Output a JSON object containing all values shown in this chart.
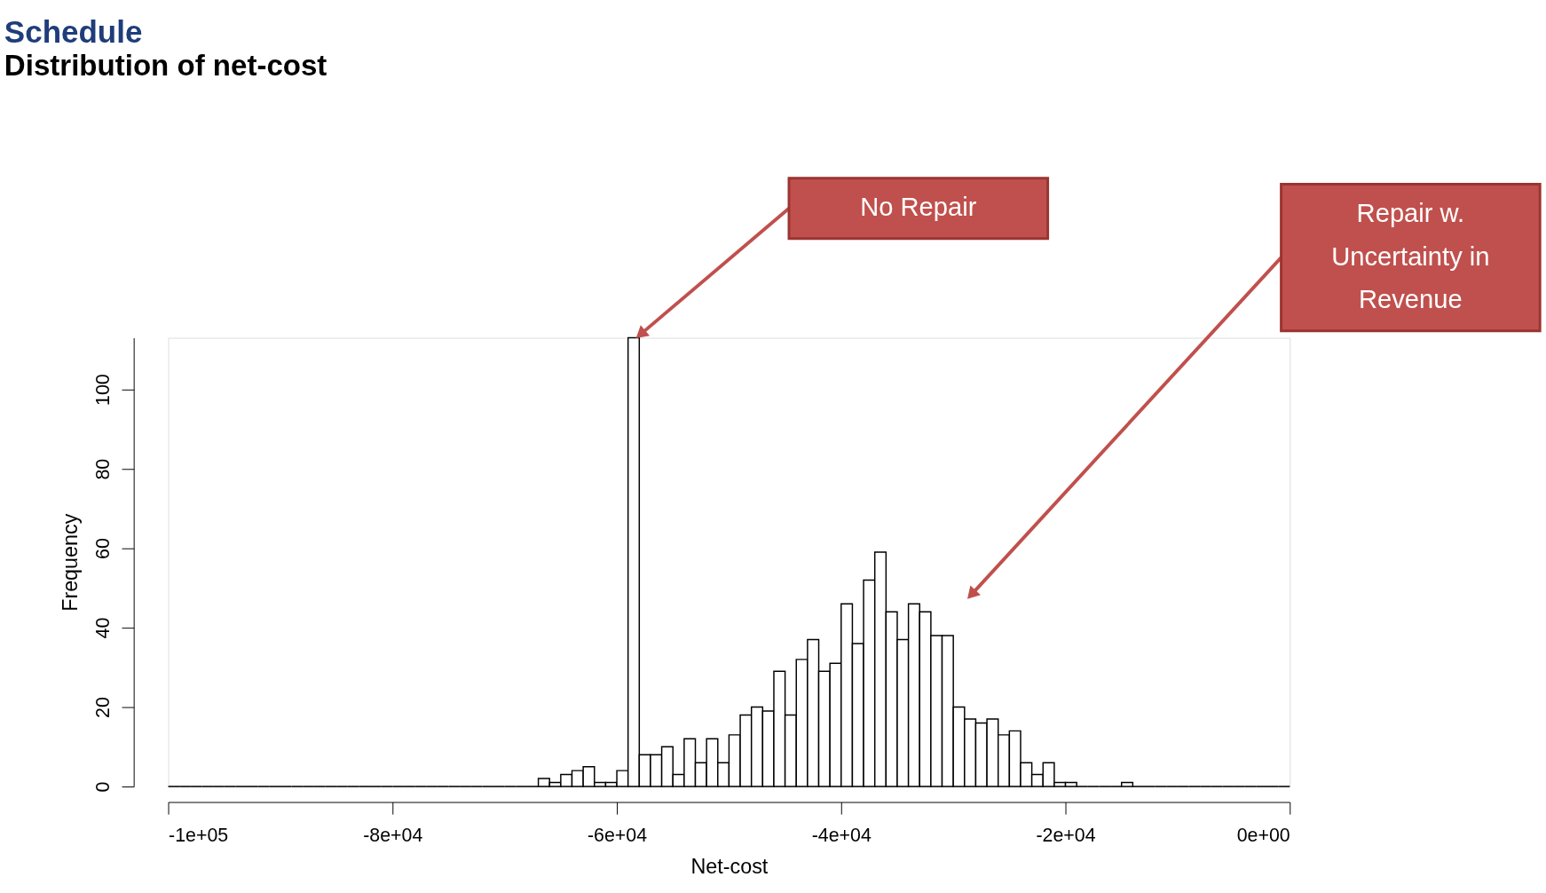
{
  "chart_data": {
    "type": "histogram",
    "title": "Schedule",
    "subtitle": "Distribution of net-cost",
    "xlabel": "Net-cost",
    "ylabel": "Frequency",
    "bins": [
      -100000,
      -99000,
      -98000,
      -97000,
      -96000,
      -95000,
      -94000,
      -93000,
      -92000,
      -91000,
      -90000,
      -89000,
      -88000,
      -87000,
      -86000,
      -85000,
      -84000,
      -83000,
      -82000,
      -81000,
      -80000,
      -79000,
      -78000,
      -77000,
      -76000,
      -75000,
      -74000,
      -73000,
      -72000,
      -71000,
      -70000,
      -69000,
      -68000,
      -67000,
      -66000,
      -65000,
      -64000,
      -63000,
      -62000,
      -61000,
      -60000,
      -59000,
      -58000,
      -57000,
      -56000,
      -55000,
      -54000,
      -53000,
      -52000,
      -51000,
      -50000,
      -49000,
      -48000,
      -47000,
      -46000,
      -45000,
      -44000,
      -43000,
      -42000,
      -41000,
      -40000,
      -39000,
      -38000,
      -37000,
      -36000,
      -35000,
      -34000,
      -33000,
      -32000,
      -31000,
      -30000,
      -29000,
      -28000,
      -27000,
      -26000,
      -25000,
      -24000,
      -23000,
      -22000,
      -21000,
      -20000,
      -19000,
      -18000,
      -17000,
      -16000,
      -15000,
      -14000,
      -13000,
      -12000,
      -11000,
      -10000,
      -9000,
      -8000,
      -7000,
      -6000,
      -5000,
      -4000,
      -3000,
      -2000,
      -1000,
      0
    ],
    "values": [
      0,
      0,
      0,
      0,
      0,
      0,
      0,
      0,
      0,
      0,
      0,
      0,
      0,
      0,
      0,
      0,
      0,
      0,
      0,
      0,
      0,
      0,
      0,
      0,
      0,
      0,
      0,
      0,
      0,
      0,
      0,
      0,
      0,
      2,
      1,
      3,
      4,
      5,
      1,
      1,
      4,
      113,
      8,
      8,
      10,
      3,
      12,
      6,
      12,
      6,
      13,
      18,
      20,
      19,
      29,
      18,
      32,
      37,
      29,
      31,
      46,
      36,
      52,
      59,
      44,
      37,
      46,
      44,
      38,
      38,
      20,
      17,
      16,
      17,
      13,
      14,
      6,
      3,
      6,
      1,
      1,
      0,
      0,
      0,
      0,
      1,
      0,
      0,
      0,
      0,
      0,
      0,
      0,
      0,
      0,
      0,
      0,
      0,
      0,
      0
    ],
    "xlim": [
      -100000,
      0
    ],
    "ylim": [
      0,
      113
    ],
    "xticks": [
      {
        "value": -100000,
        "label": "-1e+05"
      },
      {
        "value": -80000,
        "label": "-8e+04"
      },
      {
        "value": -60000,
        "label": "-6e+04"
      },
      {
        "value": -40000,
        "label": "-4e+04"
      },
      {
        "value": -20000,
        "label": "-2e+04"
      },
      {
        "value": 0,
        "label": "0e+00"
      }
    ],
    "yticks": [
      0,
      20,
      40,
      60,
      80,
      100
    ],
    "grid": false,
    "annotations": [
      "No Repair",
      "Repair w. Uncertainty in Revenue"
    ]
  }
}
